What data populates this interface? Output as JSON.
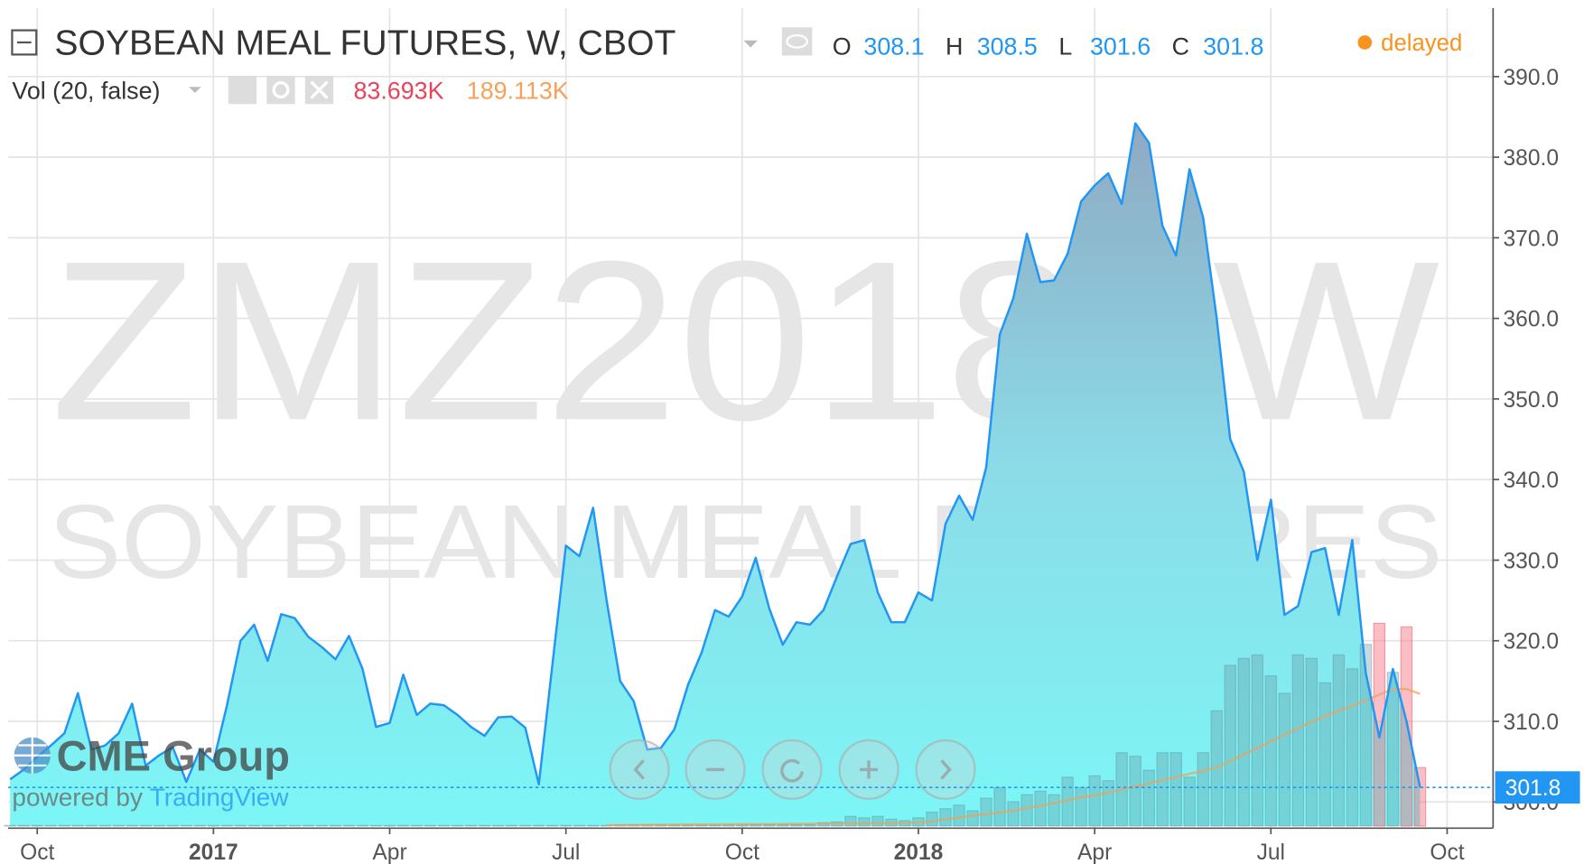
{
  "chart_data": {
    "type": "area",
    "title": "SOYBEAN MEAL FUTURES, W, CBOT",
    "watermark": "ZMZ2018, W",
    "watermark_sub": "SOYBEAN MEAL FUTURES",
    "ohlc": [
      {
        "label": "O",
        "value": 308.1
      },
      {
        "label": "H",
        "value": 308.5
      },
      {
        "label": "L",
        "value": 301.6
      },
      {
        "label": "C",
        "value": 301.8
      }
    ],
    "status": "delayed",
    "volume_title": "Vol (20, false)",
    "volume_last": "83.693K",
    "volume_ma_last": "189.113K",
    "brand": "CME Group",
    "powered_by": "powered by ",
    "powered_name": "TradingView",
    "categories": [
      null,
      null,
      "Oct",
      null,
      null,
      null,
      null,
      null,
      null,
      null,
      null,
      null,
      null,
      null,
      null,
      "2017",
      null,
      null,
      null,
      null,
      null,
      null,
      null,
      null,
      null,
      null,
      null,
      null,
      "Apr",
      null,
      null,
      null,
      null,
      null,
      null,
      null,
      null,
      null,
      null,
      null,
      null,
      "Jul",
      null,
      null,
      null,
      null,
      null,
      null,
      null,
      null,
      null,
      null,
      null,
      null,
      "Oct",
      null,
      null,
      null,
      null,
      null,
      null,
      null,
      null,
      null,
      null,
      null,
      null,
      "2018",
      null,
      null,
      null,
      null,
      null,
      null,
      null,
      null,
      null,
      null,
      null,
      null,
      "Apr",
      null,
      null,
      null,
      null,
      null,
      null,
      null,
      null,
      null,
      null,
      null,
      null,
      "Jul",
      null,
      null,
      null,
      null,
      null,
      null,
      null,
      null,
      null,
      null,
      null,
      null,
      "Oct"
    ],
    "values": [
      302.8,
      304,
      305.6,
      307,
      308.5,
      313.5,
      306.5,
      307,
      308.5,
      312.2,
      304.5,
      305.8,
      306.8,
      302.5,
      306.5,
      305,
      312,
      320,
      322,
      317.5,
      323.3,
      322.8,
      320.5,
      319.2,
      317.7,
      320.6,
      316.5,
      309.3,
      309.8,
      315.8,
      310.8,
      312.2,
      312,
      310.8,
      309.3,
      308.2,
      310.5,
      310.6,
      309.2,
      302.2,
      317,
      331.8,
      330.5,
      336.5,
      325,
      315,
      312.5,
      306.5,
      306.7,
      309,
      314.5,
      318.5,
      323.8,
      323,
      325.5,
      330.3,
      324,
      319.5,
      322.3,
      322,
      323.8,
      328,
      332,
      332.5,
      326,
      322.3,
      322.3,
      326,
      325,
      334.5,
      338,
      335,
      341.5,
      358,
      362.5,
      370.5,
      364.5,
      364.7,
      368,
      374.5,
      376.5,
      378,
      374.2,
      384.2,
      381.8,
      371.5,
      367.8,
      378.5,
      372.5,
      360,
      345,
      341,
      330,
      337.5,
      323.2,
      324.3,
      331,
      331.5,
      323.2,
      332.5,
      316,
      308,
      316.5,
      310,
      301.8,
      null,
      null
    ],
    "color": "#2196f3",
    "fill_top": "#8ea6c0",
    "fill_mid": "#8cdbe8",
    "fill_bottom": "#7cf6f6",
    "ylim": [
      297,
      398.5
    ],
    "yticks": [
      {
        "value": 300,
        "label": "300.0"
      },
      {
        "value": 310,
        "label": "310.0"
      },
      {
        "value": 320,
        "label": "320.0"
      },
      {
        "value": 330,
        "label": "330.0"
      },
      {
        "value": 340,
        "label": "340.0"
      },
      {
        "value": 350,
        "label": "350.0"
      },
      {
        "value": 360,
        "label": "360.0"
      },
      {
        "value": 370,
        "label": "370.0"
      },
      {
        "value": 380,
        "label": "380.0"
      },
      {
        "value": 390,
        "label": "390.0"
      }
    ],
    "grid": true,
    "last_price_color": "#2196f3",
    "volume": {
      "axis": "y2",
      "values": [
        1,
        1,
        1,
        1,
        1,
        1,
        1,
        1,
        1,
        1,
        1,
        1,
        1,
        1,
        1,
        1,
        1,
        1,
        1,
        1,
        1,
        1,
        1,
        1,
        1,
        1,
        1,
        1,
        1,
        1,
        1,
        1,
        1,
        1,
        1,
        1,
        1,
        1,
        1,
        1,
        1,
        1,
        1,
        1,
        1,
        2,
        2,
        2,
        2,
        2,
        2,
        2,
        2,
        2,
        2,
        2,
        2,
        2,
        2,
        2,
        5,
        6,
        14,
        12,
        14,
        10,
        8,
        12,
        20,
        25,
        30,
        22,
        40,
        55,
        35,
        45,
        50,
        45,
        70,
        55,
        72,
        65,
        105,
        100,
        80,
        105,
        105,
        70,
        105,
        165,
        230,
        240,
        245,
        215,
        190,
        245,
        240,
        205,
        245,
        225,
        260,
        290,
        220,
        285,
        83.693,
        null,
        null
      ],
      "up_color": "rgba(100,150,160,0.35)",
      "down_color": "rgba(245,110,125,0.45)",
      "colors": [
        "u",
        "u",
        "u",
        "u",
        "u",
        "u",
        "u",
        "u",
        "u",
        "u",
        "u",
        "u",
        "u",
        "u",
        "u",
        "u",
        "u",
        "u",
        "u",
        "u",
        "u",
        "u",
        "u",
        "u",
        "u",
        "u",
        "u",
        "u",
        "u",
        "u",
        "u",
        "u",
        "u",
        "u",
        "u",
        "u",
        "u",
        "u",
        "u",
        "u",
        "u",
        "u",
        "u",
        "u",
        "u",
        "u",
        "u",
        "u",
        "u",
        "u",
        "u",
        "u",
        "u",
        "u",
        "u",
        "u",
        "u",
        "u",
        "u",
        "u",
        "u",
        "u",
        "u",
        "u",
        "u",
        "u",
        "u",
        "u",
        "u",
        "u",
        "u",
        "u",
        "u",
        "u",
        "u",
        "u",
        "u",
        "u",
        "u",
        "u",
        "u",
        "u",
        "u",
        "u",
        "u",
        "u",
        "u",
        "u",
        "u",
        "u",
        "u",
        "u",
        "u",
        "u",
        "u",
        "u",
        "u",
        "u",
        "u",
        "u",
        "u",
        "d",
        "u",
        "d",
        "d",
        "u",
        "u"
      ],
      "ma": [
        null,
        null,
        null,
        null,
        null,
        null,
        null,
        null,
        null,
        null,
        null,
        null,
        null,
        null,
        null,
        null,
        null,
        null,
        null,
        null,
        null,
        null,
        null,
        null,
        null,
        null,
        null,
        null,
        null,
        null,
        null,
        null,
        null,
        null,
        null,
        null,
        null,
        null,
        null,
        null,
        null,
        null,
        null,
        null,
        1.5,
        1.6,
        1.8,
        1.9,
        2,
        2.1,
        2.3,
        2.4,
        2.5,
        2.7,
        2.8,
        3,
        3.1,
        3.3,
        3.4,
        3.5,
        3.7,
        3.8,
        4,
        4.1,
        4.3,
        4.5,
        4.7,
        5,
        7,
        10,
        12,
        15,
        17,
        20,
        22,
        26,
        29,
        33,
        37,
        41,
        44,
        48,
        52,
        57,
        61,
        66,
        70,
        75,
        79,
        84,
        93,
        102,
        112,
        121,
        131,
        140,
        149,
        157,
        165,
        172,
        180,
        188,
        196,
        196,
        189.113,
        null,
        null
      ],
      "ma_color": "#f0a05a"
    },
    "y2lim": [
      0,
      1170
    ]
  }
}
